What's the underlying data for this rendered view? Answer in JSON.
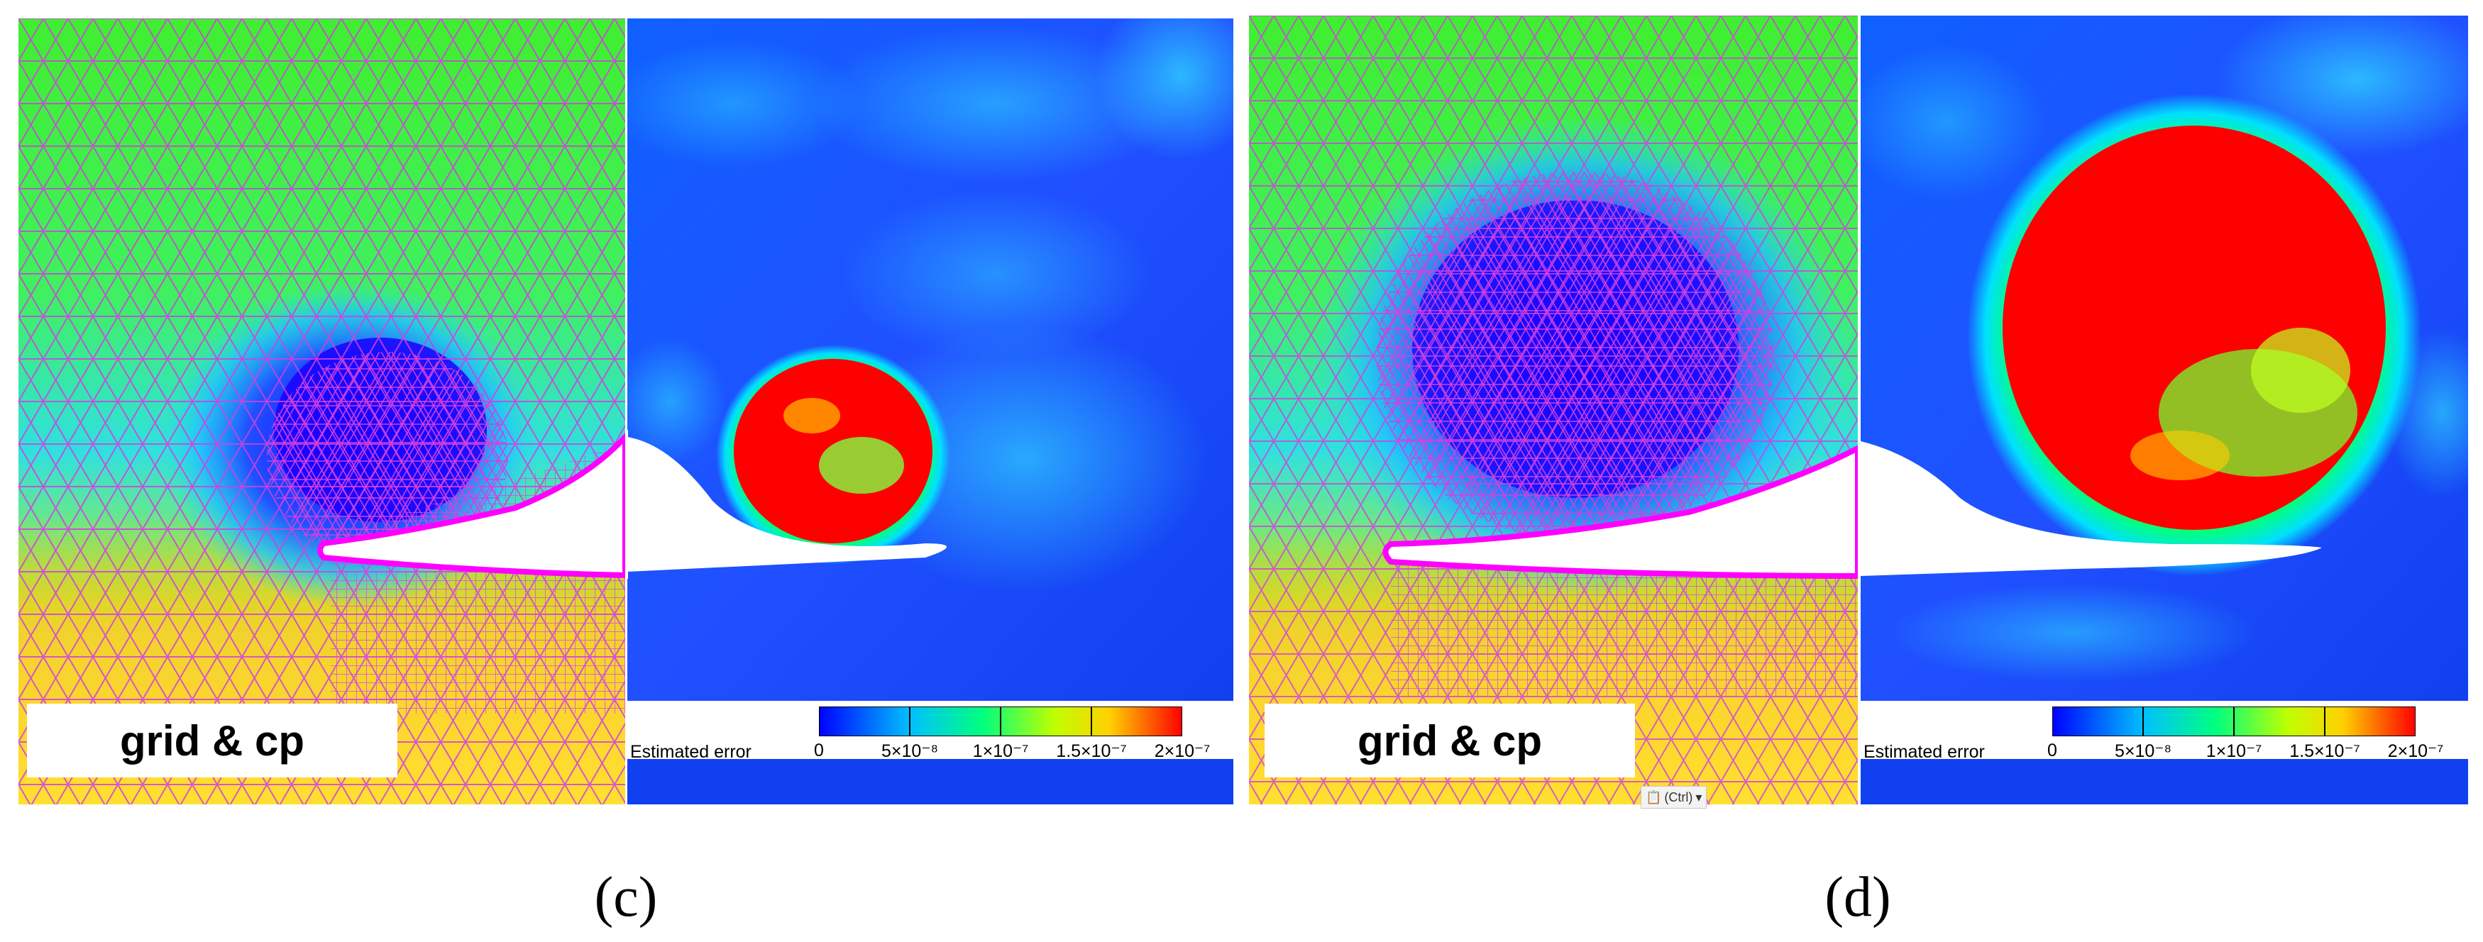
{
  "figure": {
    "left": {
      "grid_label": "grid & cp",
      "caption": "(c)"
    },
    "right": {
      "grid_label": "grid & cp",
      "caption": "(d)"
    },
    "legend": {
      "title": "Estimated error",
      "ticks": [
        "0",
        "5×10⁻⁸",
        "1×10⁻⁷",
        "1.5×10⁻⁷",
        "2×10⁻⁷"
      ],
      "colors": [
        "#0000ff",
        "#00e0ff",
        "#00ff80",
        "#ffff00",
        "#ff8000",
        "#ff0000"
      ]
    },
    "paste_chip": "(Ctrl)",
    "colors": {
      "grid_line": "#e040e0",
      "field_green": "#40ff40",
      "field_blue": "#1010ff",
      "field_yellow": "#ffee30",
      "error_red": "#ff0000",
      "error_bg": "#1a50ff"
    }
  }
}
